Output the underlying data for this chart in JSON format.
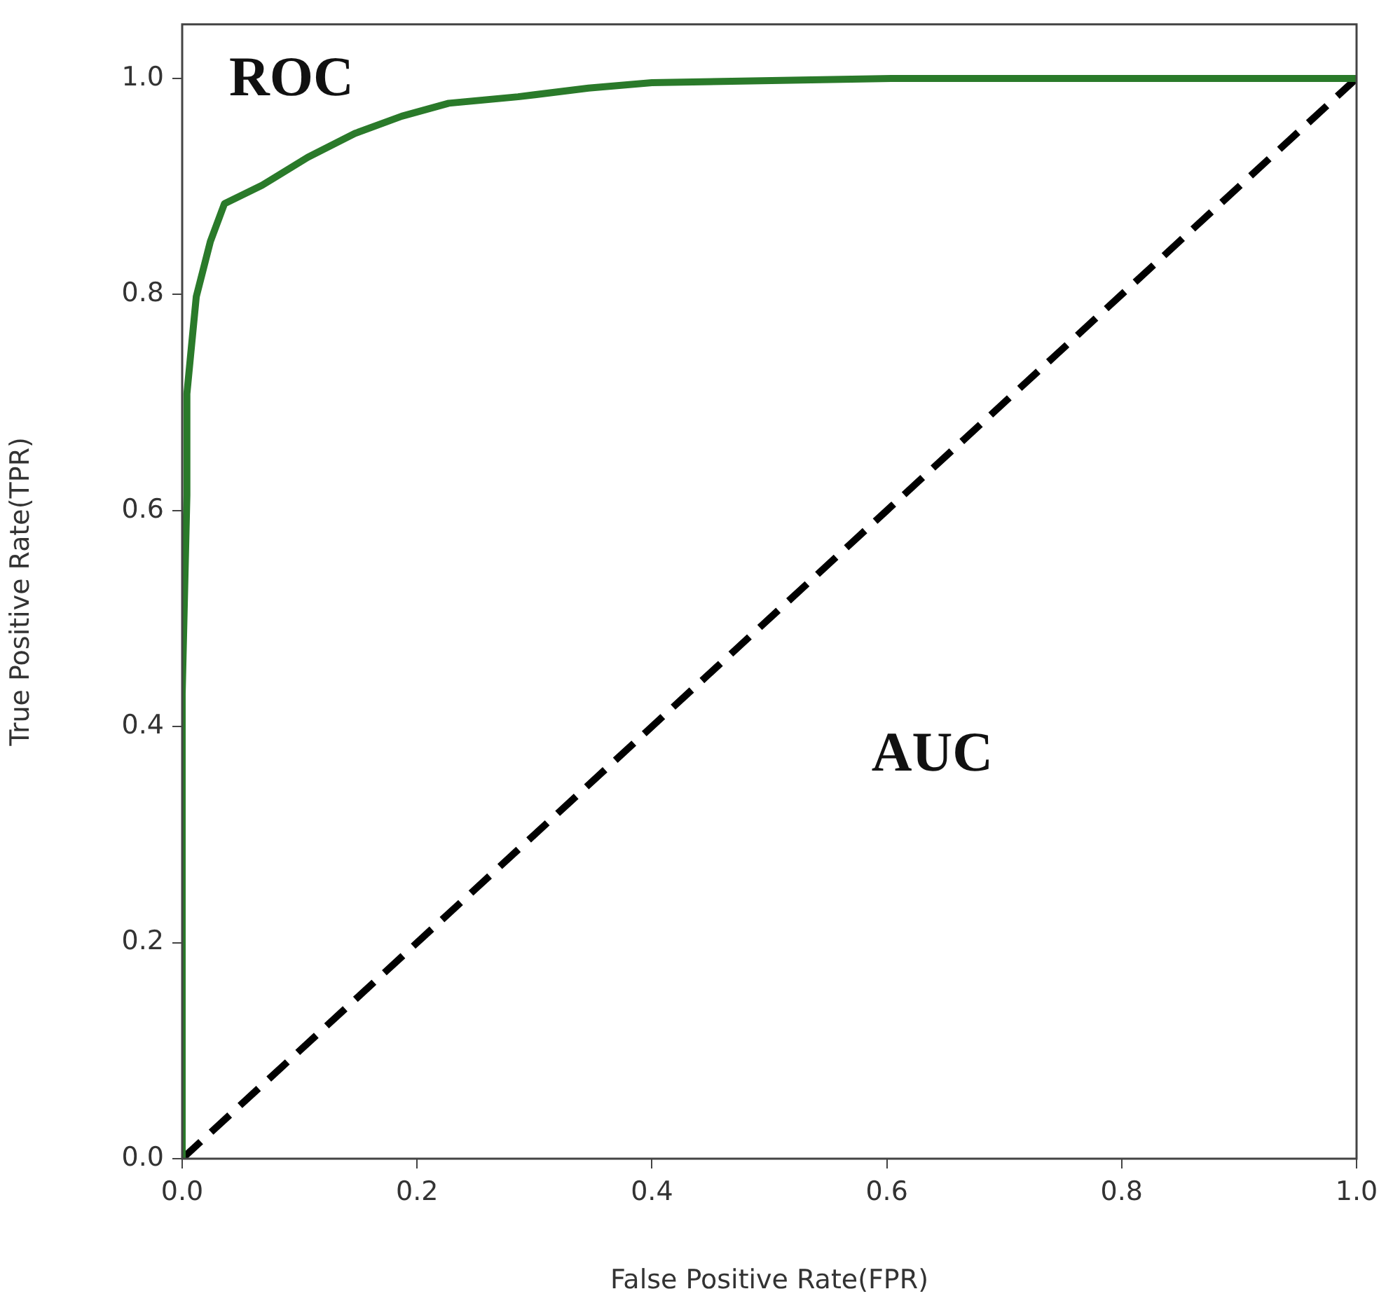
{
  "chart_data": {
    "type": "line",
    "xlabel": "False Positive Rate(FPR)",
    "ylabel": "True Positive Rate(TPR)",
    "xlim": [
      0,
      1
    ],
    "ylim": [
      0,
      1.05
    ],
    "xticks": [
      {
        "value": 0,
        "label": "0.0"
      },
      {
        "value": 0.2,
        "label": "0.2"
      },
      {
        "value": 0.4,
        "label": "0.4"
      },
      {
        "value": 0.6,
        "label": "0.6"
      },
      {
        "value": 0.8,
        "label": "0.8"
      },
      {
        "value": 1,
        "label": "1.0"
      }
    ],
    "yticks": [
      {
        "value": 0,
        "label": "0.0"
      },
      {
        "value": 0.2,
        "label": "0.2"
      },
      {
        "value": 0.4,
        "label": "0.4"
      },
      {
        "value": 0.6,
        "label": "0.6"
      },
      {
        "value": 0.8,
        "label": "0.8"
      },
      {
        "value": 1,
        "label": "1.0"
      }
    ],
    "grid": false,
    "legend": false,
    "marker": "none",
    "series": [
      {
        "color": "#2a7a2a",
        "line_style": "solid",
        "x": [
          0,
          0,
          0.004,
          0.004,
          0.012,
          0.024,
          0.036,
          0.068,
          0.107,
          0.147,
          0.187,
          0.227,
          0.286,
          0.346,
          0.4,
          0.606,
          1
        ],
        "values": [
          0,
          0.43,
          0.614,
          0.708,
          0.798,
          0.849,
          0.884,
          0.901,
          0.927,
          0.949,
          0.965,
          0.977,
          0.983,
          0.991,
          0.996,
          1,
          1
        ]
      },
      {
        "color": "#000000",
        "line_style": "dashed",
        "x": [
          0,
          1
        ],
        "values": [
          0,
          1
        ]
      }
    ],
    "annotations": [
      "ROC",
      "AUC"
    ]
  }
}
